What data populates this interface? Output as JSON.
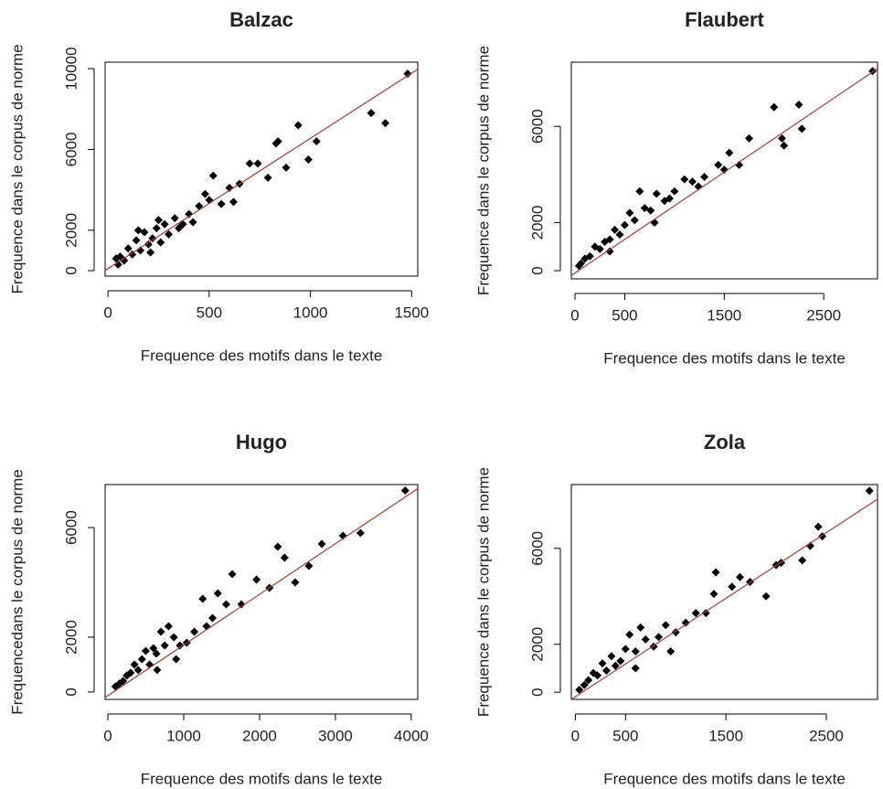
{
  "chart_data": [
    {
      "type": "scatter",
      "title": "Balzac",
      "xlabel": "Frequence des motifs dans le texte",
      "ylabel": "Frequence dans le corpus de norme",
      "color": "#000000",
      "fit_color": "#b03a2e",
      "x": [
        1480,
        1300,
        1370,
        1030,
        990,
        940,
        880,
        840,
        830,
        790,
        740,
        700,
        650,
        620,
        600,
        560,
        520,
        500,
        480,
        450,
        420,
        400,
        370,
        350,
        330,
        300,
        280,
        260,
        240,
        220,
        200,
        180,
        160,
        140,
        120,
        100,
        80,
        60,
        50,
        40,
        150,
        250,
        210
      ],
      "y": [
        9750,
        7800,
        7300,
        6400,
        5500,
        7200,
        5100,
        6400,
        6300,
        4600,
        5300,
        5300,
        4300,
        3400,
        4100,
        3300,
        4700,
        3500,
        3800,
        3200,
        2400,
        2800,
        2300,
        2100,
        2600,
        1800,
        2300,
        1400,
        2100,
        1600,
        1300,
        1900,
        1000,
        1500,
        800,
        1100,
        500,
        700,
        300,
        600,
        2000,
        2500,
        900
      ],
      "fit": {
        "x": [
          -14,
          1530
        ],
        "y": [
          10,
          9970
        ]
      },
      "xlim": [
        -14,
        1530
      ],
      "ylim": [
        -270,
        10320
      ],
      "xticks": [
        0,
        500,
        1000,
        1500
      ],
      "yticks": [
        0,
        2000,
        6000,
        10000
      ]
    },
    {
      "type": "scatter",
      "title": "Flaubert",
      "xlabel": "Frequence des motifs dans le texte",
      "ylabel": "Frequence dans le corpus de norme",
      "color": "#000000",
      "fit_color": "#b03a2e",
      "x": [
        2990,
        2250,
        2280,
        2000,
        2080,
        2100,
        1750,
        1650,
        1550,
        1500,
        1440,
        1300,
        1240,
        1180,
        1100,
        1000,
        950,
        900,
        820,
        760,
        700,
        650,
        600,
        550,
        500,
        450,
        400,
        350,
        300,
        250,
        200,
        150,
        100,
        60,
        40,
        800,
        350
      ],
      "y": [
        8300,
        6900,
        5900,
        6800,
        5500,
        5200,
        5500,
        4400,
        4900,
        4200,
        4400,
        3900,
        3500,
        3700,
        3800,
        3300,
        3000,
        2900,
        3200,
        2500,
        2600,
        3300,
        2100,
        2400,
        1900,
        1500,
        1700,
        1300,
        1200,
        900,
        1000,
        600,
        500,
        300,
        200,
        2000,
        800
      ],
      "fit": {
        "x": [
          -37,
          3040
        ],
        "y": [
          -200,
          8400
        ]
      },
      "xlim": [
        -37,
        3040
      ],
      "ylim": [
        -340,
        8670
      ],
      "xticks": [
        0,
        500,
        1500,
        2500
      ],
      "yticks": [
        0,
        2000,
        6000
      ]
    },
    {
      "type": "scatter",
      "title": "Hugo",
      "xlabel": "Frequence des motifs dans le texte",
      "ylabel": "Frequencedans le corpus de norme",
      "color": "#000000",
      "fit_color": "#b03a2e",
      "x": [
        3920,
        3330,
        3100,
        2820,
        2650,
        2470,
        2330,
        2240,
        2130,
        1960,
        1760,
        1640,
        1560,
        1450,
        1380,
        1300,
        1250,
        1140,
        1040,
        950,
        870,
        800,
        750,
        700,
        640,
        600,
        550,
        500,
        450,
        400,
        350,
        300,
        250,
        200,
        150,
        100,
        900,
        650
      ],
      "y": [
        7350,
        5800,
        5700,
        5400,
        4600,
        4000,
        4900,
        5300,
        3800,
        4100,
        3200,
        4300,
        3200,
        3600,
        2700,
        2400,
        3400,
        2200,
        1800,
        1700,
        2000,
        2400,
        1700,
        2200,
        1400,
        1600,
        1000,
        1500,
        1200,
        800,
        1000,
        700,
        600,
        400,
        300,
        200,
        1200,
        800
      ],
      "fit": {
        "x": [
          -36,
          4085
        ],
        "y": [
          -200,
          7420
        ]
      },
      "xlim": [
        -36,
        4085
      ],
      "ylim": [
        -270,
        7570
      ],
      "xticks": [
        0,
        1000,
        2000,
        3000,
        4000
      ],
      "yticks": [
        0,
        2000,
        6000
      ]
    },
    {
      "type": "scatter",
      "title": "Zola",
      "xlabel": "Frequence des motifs dans le texte",
      "ylabel": "Frequence dans le corpus de norme",
      "color": "#000000",
      "fit_color": "#b03a2e",
      "x": [
        2930,
        2420,
        2460,
        2340,
        2260,
        2050,
        2000,
        1900,
        1740,
        1640,
        1560,
        1400,
        1380,
        1300,
        1200,
        1100,
        1000,
        900,
        830,
        780,
        700,
        650,
        600,
        540,
        500,
        450,
        400,
        360,
        310,
        270,
        220,
        180,
        130,
        90,
        40,
        600,
        950
      ],
      "y": [
        8400,
        6900,
        6500,
        6100,
        5500,
        5400,
        5300,
        4000,
        4600,
        4800,
        4400,
        5000,
        4100,
        3300,
        3300,
        2900,
        2500,
        2800,
        2300,
        1900,
        2200,
        2700,
        1700,
        2400,
        1800,
        1300,
        1100,
        1500,
        900,
        1200,
        700,
        800,
        500,
        300,
        100,
        1000,
        1700
      ],
      "fit": {
        "x": [
          -40,
          3010
        ],
        "y": [
          -300,
          8050
        ]
      },
      "xlim": [
        -40,
        3010
      ],
      "ylim": [
        -300,
        8660
      ],
      "xticks": [
        0,
        500,
        1500,
        2500
      ],
      "yticks": [
        0,
        2000,
        6000
      ]
    }
  ]
}
